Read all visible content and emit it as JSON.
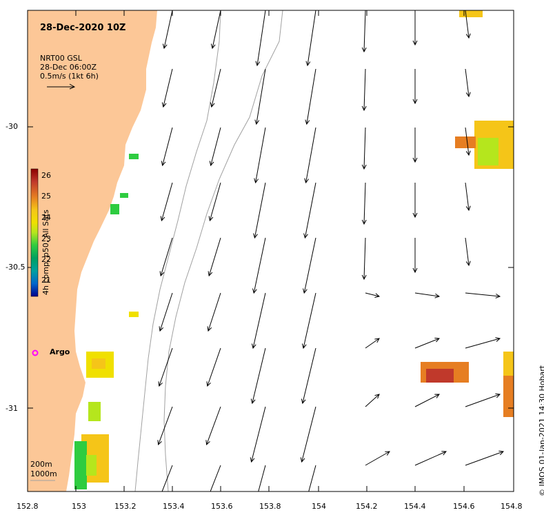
{
  "map": {
    "title": "28-Dec-2020 10Z",
    "current_source": "NRT00 GSL",
    "current_time": "28-Dec 06:00Z",
    "reference_vector": "0.5m/s (1kt 6h)",
    "lon_ticks": [
      "152.8",
      "153",
      "153.2",
      "153.4",
      "153.6",
      "153.8",
      "154",
      "154.2",
      "154.4",
      "154.6",
      "154.8"
    ],
    "lat_ticks": [
      "-30",
      "-30.5",
      "-31"
    ],
    "colorbar": {
      "label": "4h comp, p50, All Sats",
      "ticks": [
        "26",
        "25",
        "24",
        "23",
        "22",
        "21"
      ],
      "colors": [
        "#8b0000",
        "#c0392b",
        "#e67e22",
        "#f5c518",
        "#f0e000",
        "#b5e61d",
        "#2ecc40",
        "#00a060",
        "#00a0a0",
        "#0066cc",
        "#00008b"
      ]
    },
    "argo_label": "Argo",
    "depth_labels": [
      "200m",
      "1000m"
    ],
    "copyright": "© IMOS 01-Jan-2021 14:30 Hobart",
    "colors": {
      "land": "#fcc797",
      "argo": "#ff00ff",
      "contour": "#a0a0a0"
    }
  }
}
